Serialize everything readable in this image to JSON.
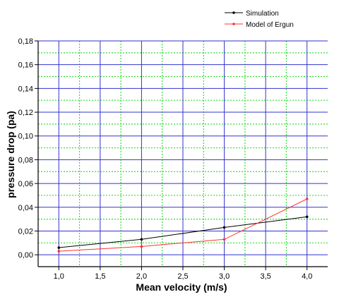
{
  "chart_data": {
    "type": "line",
    "xlabel": "Mean velocity (m/s)",
    "ylabel": "pressure drop (pa)",
    "xlim": [
      0.75,
      4.25
    ],
    "ylim": [
      -0.01,
      0.18
    ],
    "x_ticks": [
      1.0,
      1.5,
      2.0,
      2.5,
      3.0,
      3.5,
      4.0
    ],
    "x_tick_labels": [
      "1,0",
      "1,5",
      "2,0",
      "2,5",
      "3,0",
      "3,5",
      "4,0"
    ],
    "y_ticks": [
      0.0,
      0.02,
      0.04,
      0.06,
      0.08,
      0.1,
      0.12,
      0.14,
      0.16,
      0.18
    ],
    "y_tick_labels": [
      "0,00",
      "0,02",
      "0,04",
      "0,06",
      "0,08",
      "0,10",
      "0,12",
      "0,14",
      "0,16",
      "0,18"
    ],
    "grid": true,
    "major_grid_color": "#3333cc",
    "minor_grid_color": "#33dd33",
    "legend_position": "top-right",
    "series": [
      {
        "name": "Simulation",
        "color": "#000000",
        "x": [
          1.0,
          2.0,
          3.0,
          4.0
        ],
        "y": [
          0.006,
          0.013,
          0.023,
          0.032
        ]
      },
      {
        "name": "Model  of Ergun",
        "color": "#ff3333",
        "x": [
          1.0,
          2.0,
          3.0,
          4.0
        ],
        "y": [
          0.003,
          0.007,
          0.013,
          0.047
        ]
      }
    ]
  }
}
